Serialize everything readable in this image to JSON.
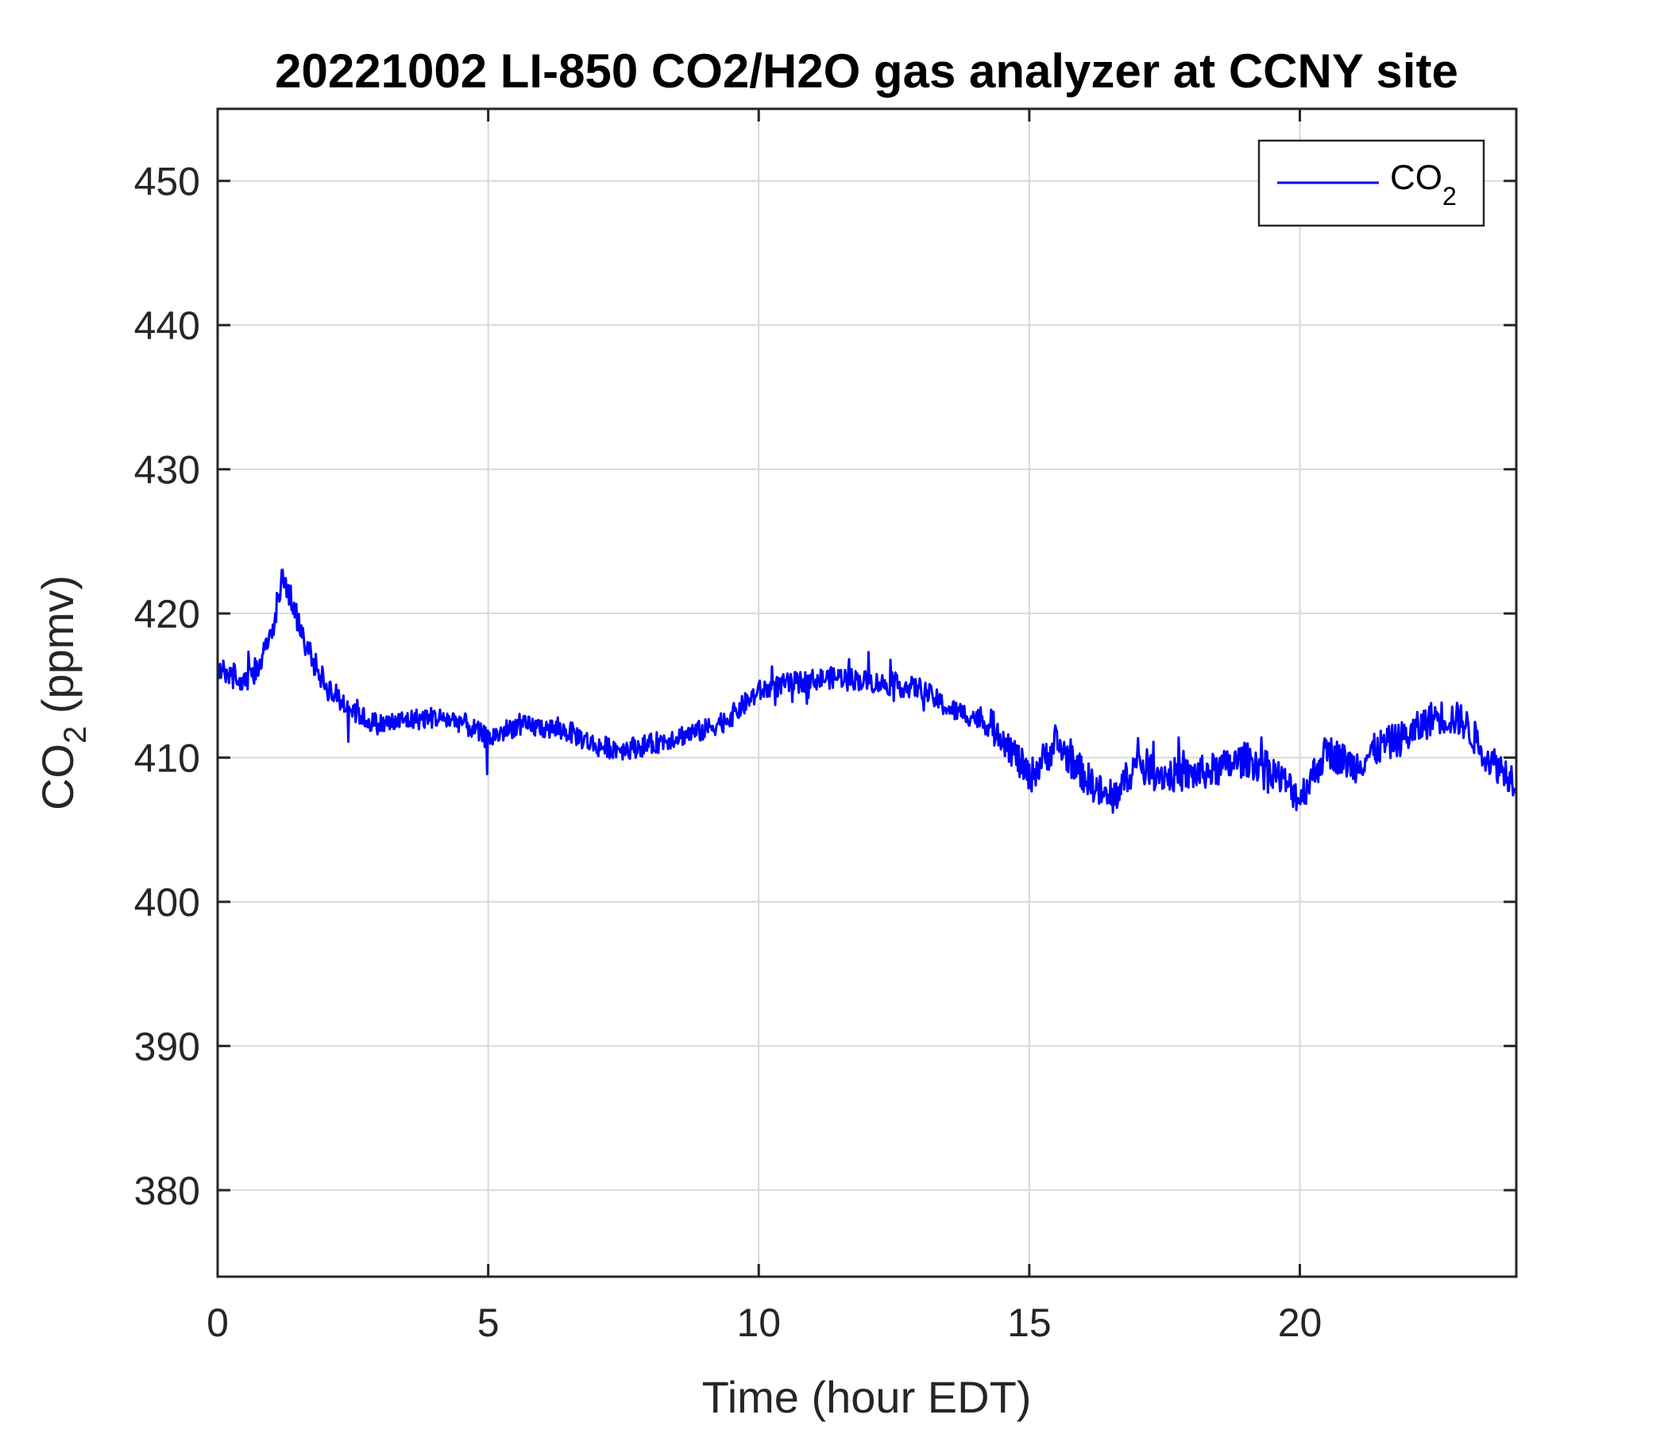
{
  "chart_data": {
    "type": "line",
    "title": "20221002 LI-850 CO2/H2O gas analyzer at CCNY site",
    "xlabel": "Time (hour EDT)",
    "ylabel": {
      "base": "CO",
      "sub": "2",
      "rest": " (ppmv)"
    },
    "xlim": [
      0,
      24
    ],
    "ylim": [
      374,
      455
    ],
    "xticks": [
      0,
      5,
      10,
      15,
      20
    ],
    "yticks": [
      380,
      390,
      400,
      410,
      420,
      430,
      440,
      450
    ],
    "grid": true,
    "legend_placement": "top-right",
    "series": [
      {
        "name": {
          "base": "CO",
          "sub": "2"
        },
        "color": "#0000ff",
        "x": [
          0,
          0.25,
          0.5,
          0.75,
          1.0,
          1.2,
          1.4,
          1.6,
          1.8,
          2.0,
          2.25,
          2.5,
          2.75,
          3.0,
          3.5,
          4.0,
          4.5,
          5.0,
          5.5,
          6.0,
          6.5,
          7.0,
          7.5,
          8.0,
          8.5,
          9.0,
          9.5,
          10.0,
          10.5,
          11.0,
          11.5,
          12.0,
          12.5,
          13.0,
          13.5,
          14.0,
          14.5,
          15.0,
          15.5,
          16.0,
          16.5,
          17.0,
          17.5,
          18.0,
          18.5,
          19.0,
          19.5,
          20.0,
          20.5,
          21.0,
          21.5,
          22.0,
          22.5,
          23.0,
          23.5,
          24.0
        ],
        "y": [
          416.2,
          415.8,
          415.0,
          416.3,
          418.5,
          422.8,
          420.5,
          418.0,
          416.5,
          415.0,
          414.0,
          413.4,
          412.6,
          412.3,
          412.6,
          412.8,
          412.5,
          411.3,
          412.2,
          412.1,
          411.8,
          410.8,
          410.6,
          410.9,
          411.5,
          411.9,
          412.9,
          414.6,
          415.1,
          415.4,
          415.6,
          415.3,
          415.0,
          414.8,
          413.4,
          412.8,
          411.6,
          408.6,
          411.0,
          408.8,
          406.9,
          409.7,
          408.8,
          408.8,
          409.2,
          409.9,
          409.1,
          407.2,
          410.5,
          409.4,
          410.8,
          411.5,
          412.9,
          412.6,
          409.9,
          408.4
        ]
      }
    ]
  }
}
